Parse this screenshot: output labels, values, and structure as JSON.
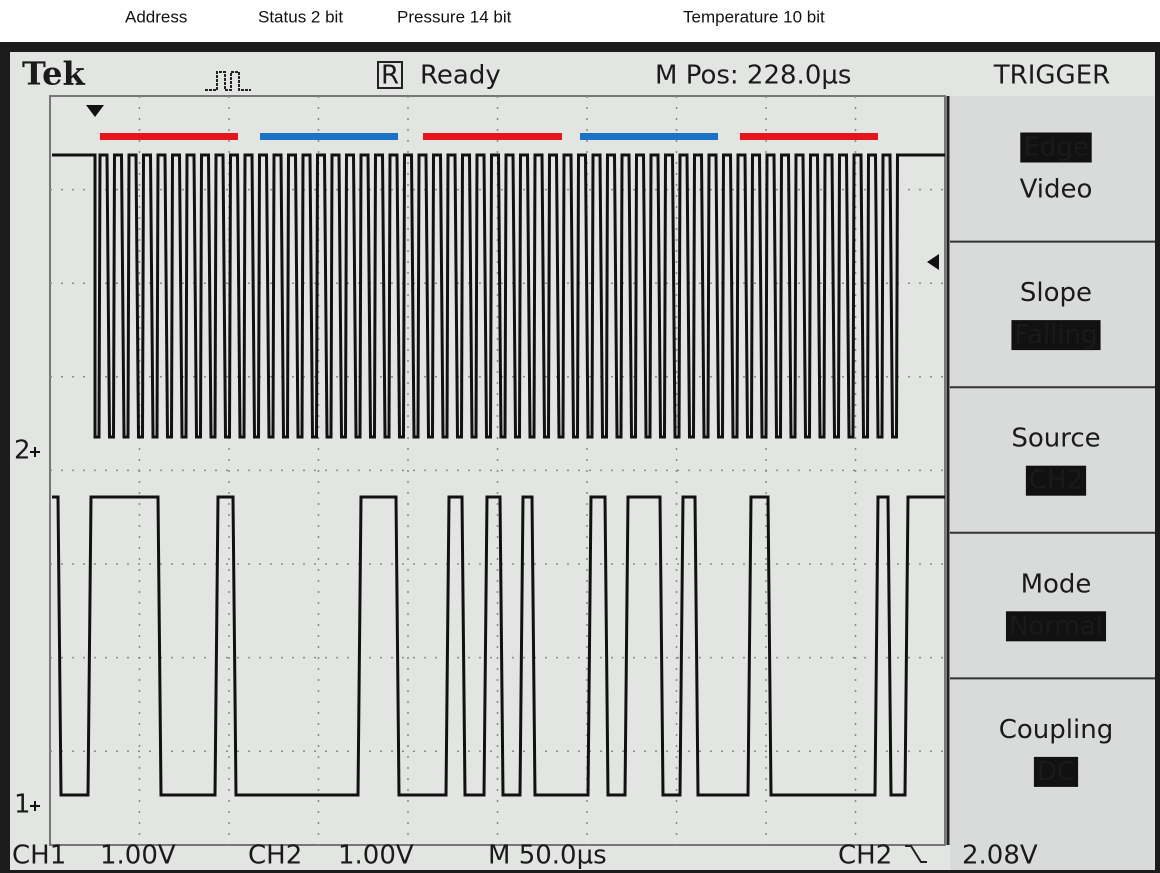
{
  "annotations": [
    "Address",
    "Status 2 bit",
    "Pressure 14 bit",
    "Temperature 10 bit"
  ],
  "header": {
    "brand": "Tek",
    "status_icon": "R",
    "status": "Ready",
    "position": "M Pos: 228.0µs",
    "menu_title": "TRIGGER"
  },
  "menu": [
    {
      "lines": [
        "Edge",
        "Video"
      ],
      "selected": 0
    },
    {
      "lines": [
        "Slope",
        "Falling"
      ],
      "selected": 1
    },
    {
      "lines": [
        "Source",
        "CH2"
      ],
      "selected": 1
    },
    {
      "lines": [
        "Mode",
        "Normal"
      ],
      "selected": 1
    },
    {
      "lines": [
        "Coupling",
        "DC"
      ],
      "selected": 1
    }
  ],
  "markers": [
    "2",
    "1"
  ],
  "footer": {
    "ch1": "CH1",
    "ch1_scale": "1.00V",
    "ch2": "CH2",
    "ch2_scale": "1.00V",
    "timebase": "M 50.0µs",
    "trigger_source": "CH2",
    "trigger_level": "2.08V"
  }
}
